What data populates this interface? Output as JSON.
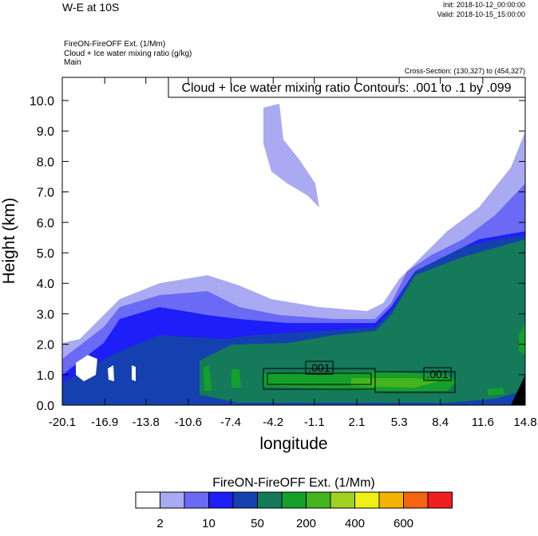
{
  "chart_data": {
    "type": "contour",
    "title": "W-E at 10S",
    "init": "Init: 2018-10-12_00:00:00",
    "valid": "Valid: 2018-10-15_15:00:00",
    "field_lines": [
      "FireON-FireOFF Ext.   (1/Mm)",
      "Cloud + Ice water mixing ratio   (g/kg)",
      "Main"
    ],
    "cross_section": "Cross-Section: (130,327) to (454,327)",
    "contour_info": "Cloud + Ice water mixing ratio Contours: .001 to .1 by .099",
    "xlabel": "longitude",
    "ylabel": "Height (km)",
    "xlim": [
      -20.1,
      14.8
    ],
    "xticks": [
      -20.1,
      -16.9,
      -13.8,
      -10.6,
      -7.4,
      -4.2,
      -1.1,
      2.1,
      5.3,
      8.4,
      11.6,
      14.8
    ],
    "ylim": [
      0,
      10.76
    ],
    "yticks": [
      {
        "value": 0,
        "label": "0.0"
      },
      {
        "value": 1,
        "label": "1.0"
      },
      {
        "value": 2,
        "label": "2.0"
      },
      {
        "value": 3,
        "label": "3.0"
      },
      {
        "value": 4,
        "label": "4.0"
      },
      {
        "value": 5,
        "label": "5.0"
      },
      {
        "value": 6,
        "label": "6.0"
      },
      {
        "value": 7,
        "label": "7.0"
      },
      {
        "value": 8,
        "label": "8.0"
      },
      {
        "value": 9,
        "label": "9.0"
      },
      {
        "value": 10,
        "label": "10.0"
      }
    ],
    "contour_labels": [
      ".001",
      ".001"
    ],
    "colorbar": {
      "title": "FireON-FireOFF Ext.  (1/Mm)",
      "colors": [
        "#ffffff",
        "#aaaaf2",
        "#6a6af4",
        "#1e1ef8",
        "#1440b0",
        "#147a5a",
        "#14a02a",
        "#46b41e",
        "#a0d21e",
        "#f0f014",
        "#f5b400",
        "#f56414",
        "#f01e1e"
      ],
      "labels": [
        "2",
        "10",
        "50",
        "200",
        "400",
        "600"
      ]
    }
  }
}
